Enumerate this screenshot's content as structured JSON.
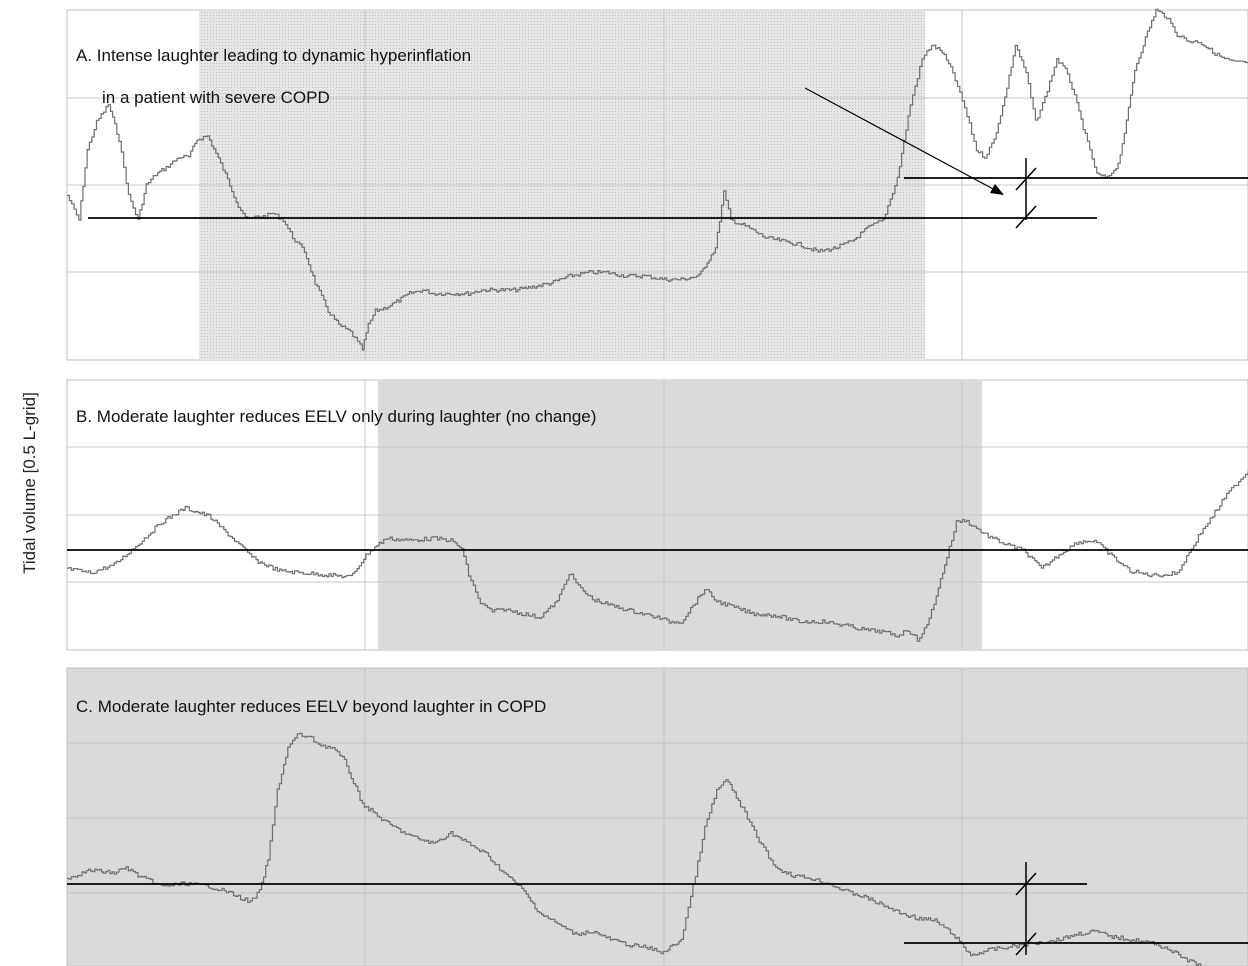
{
  "chart_data": {
    "type": "line",
    "ylabel": "Tidal volume [0.5 L-grid]",
    "grid": true,
    "colors": {
      "trace": "#6e6e6e",
      "baseline": "#000000",
      "laughter_shade": "#d9d9d9",
      "grid": "#cccccc"
    },
    "panels": [
      {
        "id": "A",
        "title_lines": [
          "A.  Intense laughter leading to dynamic hyperinflation",
          "in a patient with severe COPD"
        ],
        "x_range": [
          0,
          100
        ],
        "y_range": [
          0,
          100
        ],
        "laughter_period": [
          11.2,
          72.6
        ],
        "shade_pattern": "dotted",
        "eelv_baseline": 40,
        "eelv_after": 52,
        "x": [
          0,
          1.0,
          1.7,
          2.5,
          3.5,
          4.4,
          5.2,
          6.0,
          6.7,
          7.5,
          8.4,
          9.5,
          10.3,
          11.0,
          11.9,
          12.6,
          13.4,
          14.5,
          15.3,
          16.1,
          16.8,
          17.4,
          18.3,
          19.1,
          20.1,
          21.0,
          22.1,
          23.0,
          24.0,
          25.0,
          25.5,
          26.1,
          27.0,
          28.1,
          29.0,
          30.1,
          31.0,
          32.6,
          34.0,
          35.1,
          36.4,
          38.0,
          39.6,
          41.0,
          42.6,
          44.2,
          45.7,
          47.3,
          48.9,
          50.6,
          52.0,
          53.5,
          54.9,
          55.6,
          56.2,
          57.6,
          59.1,
          60.5,
          62.0,
          63.6,
          65.1,
          66.5,
          67.9,
          69.1,
          70.3,
          71.4,
          72.4,
          73.2,
          74.1,
          75.0,
          76.0,
          77.0,
          77.7,
          78.5,
          79.4,
          80.3,
          81.2,
          82.0,
          82.8,
          83.8,
          84.7,
          85.5,
          86.4,
          87.2,
          88.1,
          89.0,
          89.7,
          90.4,
          91.3,
          92.2,
          93.1,
          94.0,
          95.0,
          95.9,
          97.0,
          98.0,
          99.0,
          100
        ],
        "y": [
          47,
          40,
          60,
          68,
          73,
          63,
          47,
          40,
          50,
          53,
          55,
          58,
          58,
          63,
          64,
          59,
          53,
          44,
          40,
          41,
          41,
          42,
          40,
          35,
          31,
          22,
          14,
          10,
          8,
          3,
          10,
          14,
          15,
          17,
          19,
          20,
          19,
          19,
          19,
          20,
          20,
          20,
          21,
          22,
          24,
          25,
          25,
          24,
          24,
          23,
          23,
          24,
          32,
          48,
          40,
          38,
          35,
          34,
          33,
          31,
          32,
          34,
          38,
          40,
          52,
          73,
          86,
          90,
          88,
          82,
          72,
          60,
          58,
          63,
          75,
          90,
          82,
          68,
          75,
          86,
          82,
          73,
          62,
          53,
          52,
          56,
          68,
          83,
          92,
          100,
          98,
          93,
          91,
          91,
          88,
          86,
          85,
          85
        ]
      },
      {
        "id": "B",
        "title_lines": [
          "B. Moderate laughter reduces EELV only during laughter (no change)"
        ],
        "x_range": [
          0,
          100
        ],
        "y_range": [
          0,
          100
        ],
        "laughter_period": [
          26.4,
          77.0
        ],
        "shade_pattern": "solid",
        "eelv_baseline": 37,
        "x": [
          0,
          2.0,
          4.0,
          6.0,
          8.0,
          10.0,
          12.0,
          14.0,
          16.0,
          18.0,
          20.0,
          22.0,
          24.0,
          25.5,
          27.0,
          29.0,
          31.0,
          32.5,
          33.4,
          34.0,
          35.0,
          36.0,
          37.0,
          38.5,
          40.0,
          41.5,
          42.5,
          43.5,
          44.5,
          46.0,
          48.0,
          50.0,
          51.0,
          52.0,
          53.0,
          54.0,
          55.0,
          56.5,
          58.0,
          60.0,
          62.0,
          64.0,
          66.0,
          67.5,
          69.0,
          70.3,
          71.2,
          72.0,
          72.8,
          73.6,
          74.5,
          75.3,
          76.0,
          77.0,
          78.0,
          79.5,
          81.0,
          82.5,
          84.0,
          85.5,
          87.0,
          88.5,
          90.0,
          91.5,
          93.0,
          94.0,
          95.0,
          96.0,
          97.0,
          98.0,
          99.0,
          100
        ],
        "y": [
          40,
          38,
          42,
          52,
          63,
          70,
          66,
          55,
          44,
          39,
          38,
          37,
          36,
          48,
          55,
          54,
          55,
          54,
          50,
          37,
          23,
          19,
          20,
          18,
          16,
          24,
          38,
          30,
          25,
          22,
          19,
          16,
          14,
          14,
          22,
          30,
          24,
          21,
          18,
          17,
          14,
          14,
          12,
          10,
          9,
          7,
          10,
          5,
          12,
          27,
          46,
          63,
          64,
          60,
          56,
          52,
          49,
          40,
          47,
          53,
          54,
          46,
          39,
          37,
          37,
          38,
          48,
          58,
          66,
          75,
          82,
          88
        ]
      },
      {
        "id": "C",
        "title_lines": [
          "C. Moderate laughter reduces EELV beyond laughter in COPD"
        ],
        "x_range": [
          0,
          100
        ],
        "y_range": [
          0,
          100
        ],
        "laughter_period": [
          0,
          100
        ],
        "shade_pattern": "solid",
        "eelv_baseline": 29,
        "eelv_after": 5,
        "x": [
          0,
          2.0,
          4.0,
          5.0,
          6.0,
          8.0,
          10.0,
          12.0,
          13.5,
          14.5,
          15.5,
          16.3,
          17.0,
          17.8,
          18.7,
          19.5,
          20.5,
          21.5,
          22.5,
          23.5,
          25.0,
          27.0,
          29.0,
          31.0,
          32.5,
          34.0,
          35.5,
          37.0,
          38.5,
          40.0,
          41.5,
          43.0,
          44.5,
          46.0,
          47.5,
          49.0,
          50.5,
          52.0,
          53.0,
          54.0,
          55.0,
          55.8,
          56.5,
          57.2,
          58.0,
          59.0,
          60.0,
          61.5,
          63.0,
          64.5,
          66.0,
          67.5,
          69.0,
          70.5,
          72.0,
          73.5,
          75.0,
          76.5,
          78.0,
          79.5,
          81.0,
          82.5,
          84.0,
          85.5,
          87.0,
          88.5,
          90.0,
          91.5,
          93.0,
          94.5,
          96.0,
          97.0,
          98.0,
          99.0,
          100
        ],
        "y": [
          33,
          36,
          35,
          37,
          34,
          30,
          31,
          30,
          28,
          26,
          24,
          28,
          40,
          66,
          82,
          87,
          86,
          83,
          82,
          77,
          61,
          54,
          49,
          46,
          50,
          46,
          42,
          35,
          29,
          20,
          16,
          12,
          13,
          10,
          8,
          7,
          5,
          10,
          30,
          52,
          66,
          70,
          65,
          59,
          52,
          44,
          37,
          34,
          33,
          31,
          28,
          26,
          23,
          20,
          18,
          17,
          12,
          4,
          6,
          7,
          8,
          9,
          10,
          12,
          13,
          11,
          10,
          9,
          7,
          3,
          0,
          -2,
          -3,
          -3,
          -3
        ]
      }
    ]
  }
}
